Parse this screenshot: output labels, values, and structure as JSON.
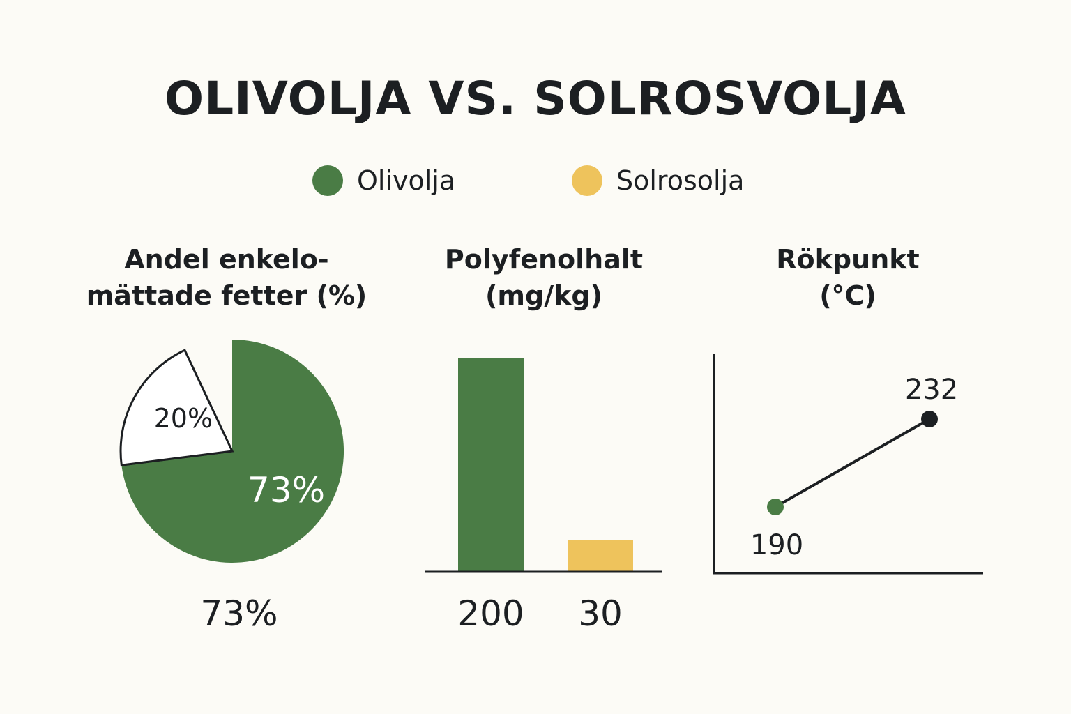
{
  "title": "OLIVOLJA VS. SOLROSVOLJA",
  "legend": [
    {
      "label": "Olivolja",
      "color": "#4a7c45"
    },
    {
      "label": "Solrosolja",
      "color": "#eec35c"
    }
  ],
  "colors": {
    "olive": "#4a7c45",
    "sunflower": "#eec35c",
    "ink": "#1c1f22"
  },
  "chart_data": [
    {
      "type": "pie",
      "title_lines": [
        "Andel enkelo-",
        "mättade fetter (%)"
      ],
      "slices": [
        {
          "value": 73,
          "label": "73%",
          "color": "#4a7c45"
        },
        {
          "value": 20,
          "label": "20%",
          "color": "#ffffff"
        }
      ],
      "caption": "73%"
    },
    {
      "type": "bar",
      "title_lines": [
        "Polyfenolhalt",
        "(mg/kg)"
      ],
      "categories": [
        "Olivolja",
        "Solrosolja"
      ],
      "values": [
        200,
        30
      ],
      "value_labels": [
        "200",
        "30"
      ],
      "colors": [
        "#4a7c45",
        "#eec35c"
      ]
    },
    {
      "type": "line",
      "title_lines": [
        "Rökpunkt",
        "(°C)"
      ],
      "points": [
        {
          "value": 190,
          "label": "190",
          "color": "#4a7c45"
        },
        {
          "value": 232,
          "label": "232",
          "color": "#1c1f22"
        }
      ]
    }
  ]
}
